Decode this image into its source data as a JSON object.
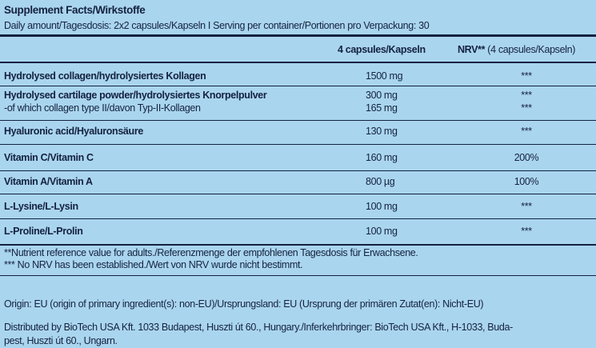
{
  "header": {
    "title": "Supplement Facts/Wirkstoffe",
    "subtitle": "Daily amount/Tagesdosis: 2x2 capsules/Kapseln I Serving per container/Portionen pro Verpackung: 30"
  },
  "table": {
    "amount_header": "4 capsules/Kapseln",
    "nrv_header": {
      "label": "NRV**",
      "note": "(4 capsules/Kapseln)"
    },
    "rows": [
      {
        "name": "Hydrolysed collagen/hydrolysiertes Kollagen",
        "amount": "1500 mg",
        "nrv": "***"
      },
      {
        "name": "Hydrolysed cartilage powder/hydrolysiertes Knorpelpulver",
        "amount": "300 mg",
        "nrv": "***",
        "sub": {
          "name": "-of which collagen type II/davon Typ-II-Kollagen",
          "amount": "165 mg",
          "nrv": "***"
        }
      },
      {
        "name": "Hyaluronic acid/Hyaluronsäure",
        "amount": "130 mg",
        "nrv": "***"
      },
      {
        "name": "Vitamin C/Vitamin C",
        "amount": "160 mg",
        "nrv": "200%"
      },
      {
        "name": "Vitamin A/Vitamin A",
        "amount": "800 µg",
        "nrv": "100%"
      },
      {
        "name": "L-Lysine/L-Lysin",
        "amount": "100 mg",
        "nrv": "***"
      },
      {
        "name": "L-Proline/L-Prolin",
        "amount": "100 mg",
        "nrv": "***"
      }
    ]
  },
  "footnotes": [
    "**Nutrient reference value for adults./Referenzmenge der empfohlenen Tagesdosis für Erwachsene.",
    "*** No NRV has been established./Wert von NRV wurde nicht bestimmt."
  ],
  "origin": "Origin: EU (origin of primary ingredient(s): non-EU)/Ursprungsland: EU (Ursprung der primären Zutat(en): Nicht-EU)",
  "distributor": [
    "Distributed by BioTech USA Kft. 1033 Budapest, Huszti út 60., Hungary./Inferkehrbringer: BioTech USA Kft., H-1033, Buda-",
    "pest, Huszti út 60., Ungarn."
  ]
}
